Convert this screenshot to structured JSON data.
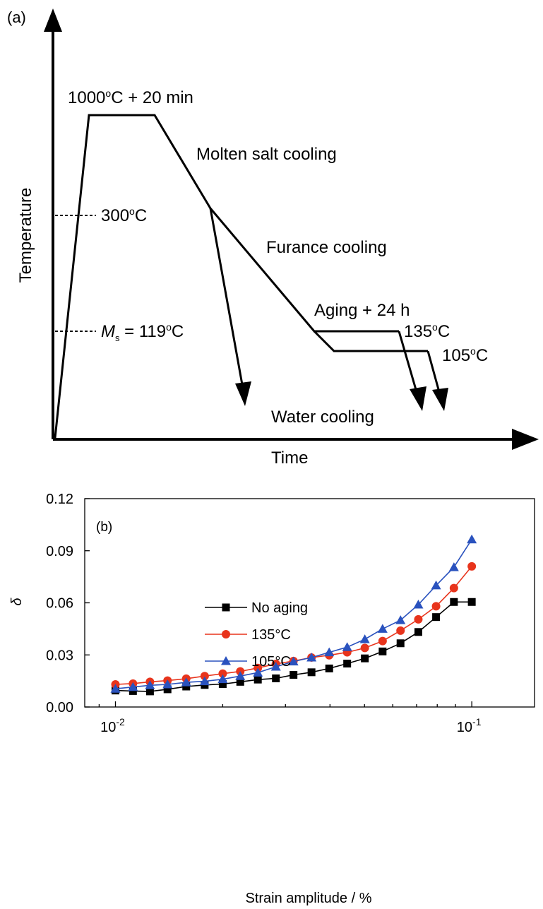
{
  "panel_a": {
    "label": "(a)",
    "y_axis_label": "Temperature",
    "x_axis_label": "Time",
    "annotations": {
      "austenitize": {
        "main": "1000",
        "sup": "o",
        "rest": "C + 20 min"
      },
      "molten_salt": "Molten salt cooling",
      "t300": {
        "main": "300",
        "sup": "o",
        "rest": "C"
      },
      "furnace": "Furance cooling",
      "ms": {
        "italic": "M",
        "sub": "s",
        "rest1": " = 119",
        "sup": "o",
        "rest2": "C"
      },
      "aging": "Aging + 24 h",
      "t135": {
        "main": "135",
        "sup": "o",
        "rest": "C"
      },
      "t105": {
        "main": "105",
        "sup": "o",
        "rest": "C"
      },
      "water": "Water cooling"
    }
  },
  "chart_data": {
    "type": "line",
    "panel_label": "(b)",
    "xlabel": "Strain amplitude / %",
    "ylabel": "δ",
    "xscale": "log",
    "xlim": [
      0.0082,
      0.15
    ],
    "ylim": [
      0,
      0.12
    ],
    "yticks": [
      "0.00",
      "0.03",
      "0.06",
      "0.09",
      "0.12"
    ],
    "xticks": [
      {
        "base": "10",
        "exp": "-2",
        "value": 0.01
      },
      {
        "base": "10",
        "exp": "-1",
        "value": 0.1
      }
    ],
    "legend": {
      "position": "upper-left"
    },
    "series": [
      {
        "name": "No aging",
        "color": "#000000",
        "marker": "square",
        "x": [
          0.01,
          0.0112,
          0.0125,
          0.014,
          0.0158,
          0.0178,
          0.02,
          0.0224,
          0.0251,
          0.0282,
          0.0316,
          0.0355,
          0.0398,
          0.0447,
          0.0501,
          0.0562,
          0.0631,
          0.0708,
          0.0794,
          0.0891,
          0.1
        ],
        "y": [
          0.0095,
          0.0092,
          0.009,
          0.0102,
          0.0118,
          0.0127,
          0.0132,
          0.0145,
          0.0158,
          0.0165,
          0.0185,
          0.02,
          0.0222,
          0.025,
          0.028,
          0.032,
          0.0367,
          0.0432,
          0.0518,
          0.0605,
          0.0605
        ]
      },
      {
        "name": "135°C",
        "color": "#e8341c",
        "marker": "circle",
        "x": [
          0.01,
          0.0112,
          0.0125,
          0.014,
          0.0158,
          0.0178,
          0.02,
          0.0224,
          0.0251,
          0.0282,
          0.0316,
          0.0355,
          0.0398,
          0.0447,
          0.0501,
          0.0562,
          0.0631,
          0.0708,
          0.0794,
          0.0891,
          0.1
        ],
        "y": [
          0.013,
          0.0135,
          0.0145,
          0.0152,
          0.0163,
          0.0178,
          0.0192,
          0.0205,
          0.0225,
          0.0248,
          0.0265,
          0.0285,
          0.0298,
          0.0315,
          0.034,
          0.038,
          0.044,
          0.0505,
          0.058,
          0.0685,
          0.081
        ]
      },
      {
        "name": "105°C",
        "color": "#2a52be",
        "marker": "triangle",
        "x": [
          0.01,
          0.0112,
          0.0125,
          0.014,
          0.0158,
          0.0178,
          0.02,
          0.0224,
          0.0251,
          0.0282,
          0.0316,
          0.0355,
          0.0398,
          0.0447,
          0.0501,
          0.0562,
          0.0631,
          0.0708,
          0.0794,
          0.0891,
          0.1
        ],
        "y": [
          0.0105,
          0.0115,
          0.0125,
          0.013,
          0.0142,
          0.0148,
          0.016,
          0.0178,
          0.0198,
          0.0232,
          0.0262,
          0.0285,
          0.0315,
          0.0345,
          0.039,
          0.045,
          0.05,
          0.059,
          0.07,
          0.0805,
          0.0965
        ]
      }
    ]
  }
}
